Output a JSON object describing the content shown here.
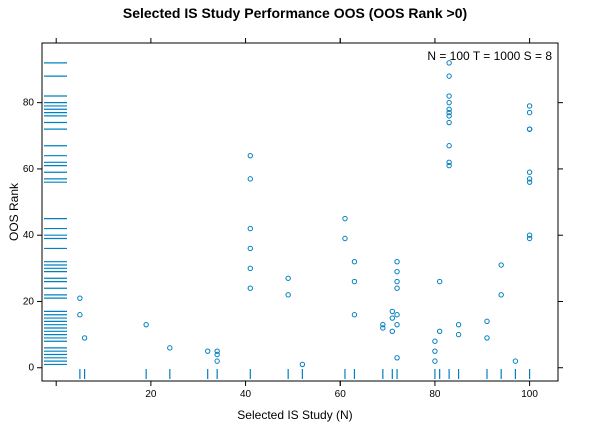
{
  "chart_data": {
    "type": "scatter",
    "title": "Selected IS Study Performance OOS (OOS Rank >0)",
    "xlabel": "Selected IS Study (N)",
    "ylabel": "OOS Rank",
    "xlim": [
      -3,
      106
    ],
    "ylim": [
      -4,
      98
    ],
    "xticks": [
      20,
      40,
      60,
      80,
      100
    ],
    "yticks": [
      0,
      20,
      40,
      60,
      80
    ],
    "annotation": "N = 100  T = 1000  S = 8",
    "grid": false,
    "rug_x": true,
    "rug_y": true,
    "point_color": "#0080c0",
    "x": [
      5,
      5,
      6,
      19,
      24,
      32,
      34,
      34,
      34,
      41,
      41,
      41,
      41,
      41,
      41,
      49,
      49,
      52,
      61,
      61,
      63,
      63,
      63,
      69,
      69,
      71,
      71,
      71,
      72,
      72,
      72,
      72,
      72,
      72,
      72,
      80,
      80,
      80,
      81,
      81,
      83,
      83,
      83,
      83,
      83,
      83,
      83,
      83,
      83,
      83,
      83,
      85,
      85,
      91,
      91,
      94,
      94,
      97,
      100,
      100,
      100,
      100,
      100,
      100,
      100,
      100,
      100
    ],
    "y": [
      21,
      16,
      9,
      13,
      6,
      5,
      5,
      4,
      2,
      64,
      57,
      42,
      36,
      30,
      24,
      27,
      22,
      1,
      45,
      39,
      32,
      26,
      16,
      13,
      12,
      17,
      15,
      11,
      3,
      16,
      13,
      32,
      29,
      26,
      24,
      8,
      5,
      2,
      26,
      11,
      92,
      88,
      82,
      80,
      78,
      77,
      76,
      74,
      67,
      62,
      61,
      13,
      10,
      14,
      9,
      31,
      22,
      2,
      79,
      77,
      72,
      59,
      57,
      56,
      40,
      39,
      72
    ]
  }
}
